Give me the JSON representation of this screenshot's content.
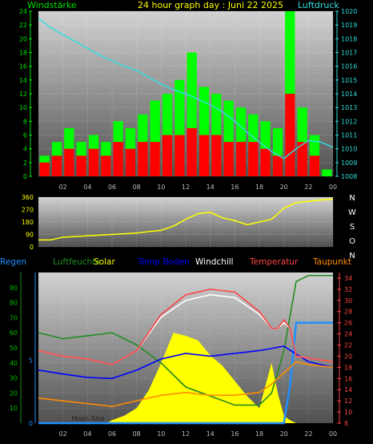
{
  "chart_data": [
    {
      "type": "bar",
      "title": "24 hour graph day : Juni 22 2025",
      "left_label": "Windstärke",
      "right_label": "Luftdruck",
      "x_ticks": [
        "02",
        "04",
        "06",
        "08",
        "10",
        "12",
        "14",
        "16",
        "18",
        "20",
        "22",
        "00"
      ],
      "y_left_ticks": [
        "0",
        "2",
        "4",
        "6",
        "8",
        "10",
        "12",
        "14",
        "16",
        "18",
        "20",
        "22",
        "24"
      ],
      "y_right_ticks": [
        "1008",
        "1009",
        "1010",
        "1011",
        "1012",
        "1013",
        "1014",
        "1015",
        "1016",
        "1017",
        "1018",
        "1019",
        "1020"
      ],
      "ylim_left": [
        0,
        24
      ],
      "ylim_right": [
        1008,
        1020
      ],
      "series": [
        {
          "name": "Windstärke",
          "color": "#00ff00",
          "x": [
            0.5,
            1.5,
            2.5,
            3.5,
            4.5,
            5.5,
            6.5,
            7.5,
            8.5,
            9.5,
            10.5,
            11.5,
            12.5,
            13.5,
            14.5,
            15.5,
            16.5,
            17.5,
            18.5,
            19.5,
            20.5,
            21.5,
            22.5,
            23.5
          ],
          "values": [
            3,
            5,
            7,
            5,
            6,
            5,
            8,
            7,
            9,
            11,
            12,
            14,
            18,
            13,
            12,
            11,
            10,
            9,
            8,
            7,
            24,
            10,
            6,
            1
          ]
        },
        {
          "name": "Böen",
          "color": "#ff0000",
          "x": [
            0.5,
            1.5,
            2.5,
            3.5,
            4.5,
            5.5,
            6.5,
            7.5,
            8.5,
            9.5,
            10.5,
            11.5,
            12.5,
            13.5,
            14.5,
            15.5,
            16.5,
            17.5,
            18.5,
            19.5,
            20.5,
            21.5,
            22.5,
            23.5
          ],
          "values": [
            2,
            3,
            4,
            3,
            4,
            3,
            5,
            4,
            5,
            5,
            6,
            6,
            7,
            6,
            6,
            5,
            5,
            5,
            4,
            3,
            12,
            5,
            3,
            0
          ]
        },
        {
          "name": "Luftdruck",
          "color": "#33dddd",
          "x": [
            0,
            1,
            2,
            3,
            4,
            5,
            6,
            7,
            8,
            9,
            10,
            11,
            12,
            13,
            14,
            15,
            16,
            17,
            18,
            19,
            20,
            21,
            22,
            23,
            24
          ],
          "values": [
            1019.5,
            1018.8,
            1018.3,
            1017.8,
            1017.3,
            1016.8,
            1016.4,
            1016.0,
            1015.7,
            1015.2,
            1014.7,
            1014.3,
            1014.0,
            1013.6,
            1013.2,
            1012.7,
            1012.0,
            1011.2,
            1010.5,
            1009.8,
            1009.3,
            1010.0,
            1010.6,
            1010.5,
            1010.1
          ]
        }
      ]
    },
    {
      "type": "line",
      "x_ticks": [
        "02",
        "04",
        "06",
        "08",
        "10",
        "12",
        "14",
        "16",
        "18",
        "20",
        "22",
        "00"
      ],
      "y_ticks": [
        "0",
        "90",
        "180",
        "270",
        "360"
      ],
      "ylim": [
        0,
        360
      ],
      "compass_labels": [
        "N",
        "W",
        "S",
        "O",
        "N"
      ],
      "series": [
        {
          "name": "Windrichtung",
          "color": "#ffff00",
          "x": [
            0,
            1,
            2,
            3,
            4,
            5,
            6,
            7,
            8,
            9,
            10,
            11,
            12,
            13,
            14,
            15,
            16,
            17,
            18,
            19,
            20,
            21,
            22,
            23,
            24
          ],
          "values": [
            50,
            50,
            70,
            75,
            80,
            85,
            90,
            95,
            100,
            110,
            120,
            150,
            200,
            240,
            250,
            210,
            190,
            160,
            180,
            200,
            280,
            320,
            330,
            340,
            345
          ]
        }
      ]
    },
    {
      "type": "line",
      "legend": [
        "Regen",
        "Luftfeuchte",
        "Solar",
        "Temp Boden",
        "Windchill",
        "Temperatur",
        "Taupunkt"
      ],
      "x_ticks": [
        "02",
        "04",
        "06",
        "08",
        "10",
        "12",
        "14",
        "16",
        "18",
        "20",
        "22",
        "00"
      ],
      "y_left_ticks": [
        "10",
        "20",
        "30",
        "40",
        "50",
        "60",
        "70",
        "80",
        "90"
      ],
      "y_rain_ticks": [
        "0",
        "5"
      ],
      "y_right_ticks": [
        "8",
        "10",
        "12",
        "14",
        "16",
        "18",
        "20",
        "22",
        "24",
        "26",
        "28",
        "30",
        "32",
        "34"
      ],
      "ylim_left": [
        0,
        100
      ],
      "ylim_right": [
        8,
        35
      ],
      "annotation": "Moon Rise",
      "series": [
        {
          "name": "Regen",
          "color": "#1e90ff",
          "axis": "rain",
          "x": [
            0,
            20,
            20.5,
            21,
            24
          ],
          "values": [
            0,
            0,
            3,
            8,
            8
          ]
        },
        {
          "name": "Luftfeuchte",
          "color": "#228b22",
          "axis": "left",
          "x": [
            0,
            2,
            4,
            6,
            8,
            10,
            12,
            14,
            16,
            18,
            19,
            20,
            21,
            22,
            24
          ],
          "values": [
            60,
            56,
            58,
            60,
            52,
            40,
            24,
            18,
            12,
            12,
            20,
            48,
            94,
            98,
            98
          ]
        },
        {
          "name": "Solar",
          "color": "#ffff00",
          "axis": "left",
          "x": [
            0,
            5.5,
            6,
            7,
            8,
            9,
            10,
            11,
            12,
            13,
            14,
            15,
            16,
            17,
            18,
            19,
            19.5,
            20,
            20.5,
            21,
            24
          ],
          "values": [
            0,
            0,
            2,
            5,
            10,
            22,
            40,
            60,
            58,
            55,
            45,
            38,
            28,
            18,
            10,
            40,
            20,
            5,
            2,
            0,
            0
          ]
        },
        {
          "name": "Temp Boden",
          "color": "#0000ff",
          "axis": "right",
          "x": [
            0,
            2,
            4,
            6,
            8,
            10,
            12,
            14,
            16,
            18,
            20,
            22,
            24
          ],
          "values": [
            17.5,
            16.8,
            16.2,
            16,
            17.5,
            19.5,
            20.5,
            20,
            20.5,
            21,
            21.8,
            19,
            18
          ]
        },
        {
          "name": "Windchill",
          "color": "#ffffff",
          "axis": "right",
          "x": [
            0,
            2,
            4,
            6,
            8,
            10,
            12,
            14,
            16,
            18,
            19,
            19.5,
            20,
            20.5,
            21,
            24
          ],
          "values": [
            21,
            20,
            19.5,
            18.5,
            21,
            27,
            30,
            31,
            30.5,
            27.5,
            25,
            25,
            26,
            25,
            20,
            19
          ]
        },
        {
          "name": "Temperatur",
          "color": "#ff4444",
          "axis": "right",
          "x": [
            0,
            2,
            4,
            6,
            8,
            10,
            12,
            14,
            16,
            18,
            19,
            19.5,
            20,
            20.5,
            21,
            24
          ],
          "values": [
            21,
            20,
            19.5,
            18.5,
            21,
            27.5,
            31,
            32,
            31.5,
            28,
            25,
            25,
            26.5,
            25,
            20,
            19
          ]
        },
        {
          "name": "Taupunkt",
          "color": "#ff8c00",
          "axis": "right",
          "x": [
            0,
            2,
            4,
            6,
            8,
            10,
            12,
            14,
            16,
            18,
            19,
            20,
            21,
            22,
            24
          ],
          "values": [
            12.5,
            12,
            11.5,
            11,
            12,
            13,
            13.5,
            13,
            13,
            13.5,
            15,
            17,
            19,
            18.5,
            18
          ]
        }
      ]
    }
  ]
}
